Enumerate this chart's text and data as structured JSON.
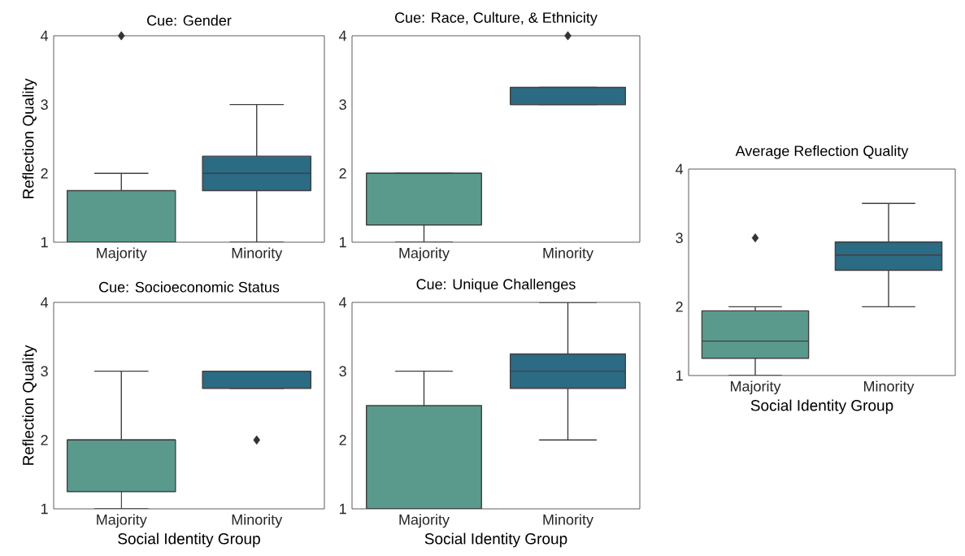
{
  "chart_data": [
    {
      "type": "box",
      "title": "Cue: Gender",
      "ylabel": "Reflection Quality",
      "categories": [
        "Majority",
        "Minority"
      ],
      "colors": [
        "#5a9a8c",
        "#2b6b84"
      ],
      "ylim": [
        1,
        4
      ],
      "yticks": [
        1,
        2,
        3,
        4
      ],
      "boxes": [
        {
          "low": 1,
          "q1": 1,
          "median": 1,
          "q3": 1.75,
          "high": 2,
          "outliers": [
            4
          ]
        },
        {
          "low": 1,
          "q1": 1.75,
          "median": 2,
          "q3": 2.25,
          "high": 3
        }
      ]
    },
    {
      "type": "box",
      "title": "Cue: Race, Culture, & Ethnicity",
      "categories": [
        "Majority",
        "Minority"
      ],
      "colors": [
        "#5a9a8c",
        "#2b6b84"
      ],
      "ylim": [
        1,
        4
      ],
      "yticks": [
        1,
        2,
        3,
        4
      ],
      "boxes": [
        {
          "low": 1,
          "q1": 1.25,
          "median": 2,
          "q3": 2,
          "high": 2
        },
        {
          "low": 3,
          "q1": 3,
          "median": 3,
          "q3": 3.25,
          "high": 3.25,
          "outliers": [
            4
          ]
        }
      ]
    },
    {
      "type": "box",
      "title": "Cue: Socioeconomic Status",
      "ylabel": "Reflection Quality",
      "xlabel": "Social Identity Group",
      "categories": [
        "Majority",
        "Minority"
      ],
      "colors": [
        "#5a9a8c",
        "#2b6b84"
      ],
      "ylim": [
        1,
        4
      ],
      "yticks": [
        1,
        2,
        3,
        4
      ],
      "boxes": [
        {
          "low": 1,
          "q1": 1.25,
          "median": 2,
          "q3": 2,
          "high": 3
        },
        {
          "low": 2.75,
          "q1": 2.75,
          "median": 3,
          "q3": 3,
          "high": 3,
          "outliers": [
            2
          ]
        }
      ]
    },
    {
      "type": "box",
      "title": "Cue: Unique Challenges",
      "xlabel": "Social Identity Group",
      "categories": [
        "Majority",
        "Minority"
      ],
      "colors": [
        "#5a9a8c",
        "#2b6b84"
      ],
      "ylim": [
        1,
        4
      ],
      "yticks": [
        1,
        2,
        3,
        4
      ],
      "boxes": [
        {
          "low": 1,
          "q1": 1,
          "median": 1,
          "q3": 2.5,
          "high": 3
        },
        {
          "low": 2,
          "q1": 2.75,
          "median": 3,
          "q3": 3.25,
          "high": 4
        }
      ]
    },
    {
      "type": "box",
      "title": "Average Reflection Quality",
      "xlabel": "Social Identity Group",
      "categories": [
        "Majority",
        "Minority"
      ],
      "colors": [
        "#5a9a8c",
        "#2b6b84"
      ],
      "ylim": [
        1,
        4
      ],
      "yticks": [
        1,
        2,
        3,
        4
      ],
      "boxes": [
        {
          "low": 1,
          "q1": 1.25,
          "median": 1.5,
          "q3": 1.94,
          "high": 2,
          "outliers": [
            3
          ]
        },
        {
          "low": 2,
          "q1": 2.53,
          "median": 2.75,
          "q3": 2.94,
          "high": 3.5
        }
      ]
    }
  ]
}
